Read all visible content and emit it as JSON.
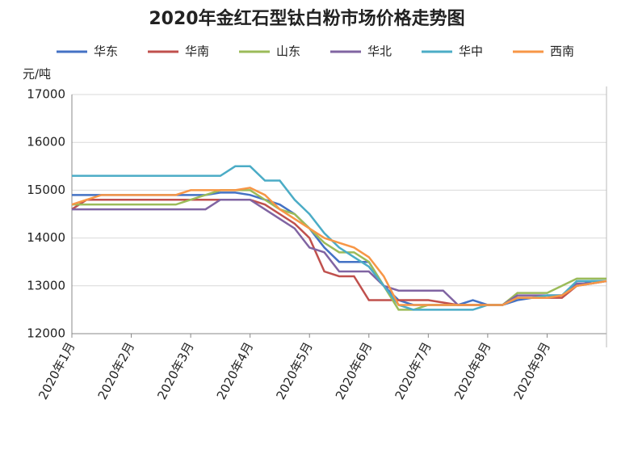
{
  "chart_data": {
    "type": "line",
    "title": "2020年金红石型钛白粉市场价格走势图",
    "y_label": "元/吨",
    "categories": [
      "2020年1月",
      null,
      null,
      null,
      "2020年2月",
      null,
      null,
      null,
      "2020年3月",
      null,
      null,
      null,
      "2020年4月",
      null,
      null,
      null,
      "2020年5月",
      null,
      null,
      null,
      "2020年6月",
      null,
      null,
      null,
      "2020年7月",
      null,
      null,
      null,
      "2020年8月",
      null,
      null,
      null,
      "2020年9月",
      null,
      null,
      null,
      null
    ],
    "series": [
      {
        "name": "华东",
        "color": "#4472c4",
        "values": [
          14900,
          14900,
          14900,
          14900,
          14900,
          14900,
          14900,
          14900,
          14900,
          14900,
          14950,
          14950,
          14900,
          14800,
          14700,
          14500,
          14200,
          13800,
          13500,
          13500,
          13500,
          13000,
          12700,
          12600,
          12600,
          12600,
          12600,
          12700,
          12600,
          12600,
          12700,
          12750,
          12800,
          12800,
          13000,
          13100,
          13100
        ]
      },
      {
        "name": "华南",
        "color": "#c0504d",
        "values": [
          14600,
          14800,
          14800,
          14800,
          14800,
          14800,
          14800,
          14800,
          14800,
          14800,
          14800,
          14800,
          14800,
          14700,
          14500,
          14300,
          14000,
          13300,
          13200,
          13200,
          12700,
          12700,
          12700,
          12700,
          12700,
          12650,
          12600,
          12600,
          12600,
          12600,
          12750,
          12750,
          12750,
          12750,
          13000,
          13050,
          13100
        ]
      },
      {
        "name": "山东",
        "color": "#9bbb59",
        "values": [
          14700,
          14700,
          14700,
          14700,
          14700,
          14700,
          14700,
          14700,
          14800,
          14900,
          15000,
          15000,
          15000,
          14800,
          14600,
          14500,
          14200,
          13900,
          13700,
          13700,
          13500,
          13000,
          12500,
          12500,
          12600,
          12600,
          12600,
          12600,
          12600,
          12600,
          12850,
          12850,
          12850,
          13000,
          13150,
          13150,
          13150
        ]
      },
      {
        "name": "华北",
        "color": "#8064a2",
        "values": [
          14600,
          14600,
          14600,
          14600,
          14600,
          14600,
          14600,
          14600,
          14600,
          14600,
          14800,
          14800,
          14800,
          14600,
          14400,
          14200,
          13800,
          13700,
          13300,
          13300,
          13300,
          13000,
          12900,
          12900,
          12900,
          12900,
          12600,
          12600,
          12600,
          12600,
          12800,
          12800,
          12800,
          12800,
          13050,
          13050,
          13100
        ]
      },
      {
        "name": "华中",
        "color": "#4bacc6",
        "values": [
          15300,
          15300,
          15300,
          15300,
          15300,
          15300,
          15300,
          15300,
          15300,
          15300,
          15300,
          15500,
          15500,
          15200,
          15200,
          14800,
          14500,
          14100,
          13800,
          13600,
          13400,
          13000,
          12600,
          12500,
          12500,
          12500,
          12500,
          12500,
          12600,
          12600,
          12750,
          12750,
          12800,
          12800,
          13100,
          13100,
          13100
        ]
      },
      {
        "name": "西南",
        "color": "#f79646",
        "values": [
          14700,
          14800,
          14900,
          14900,
          14900,
          14900,
          14900,
          14900,
          15000,
          15000,
          15000,
          15000,
          15050,
          14900,
          14600,
          14400,
          14200,
          14000,
          13900,
          13800,
          13600,
          13200,
          12600,
          12600,
          12600,
          12600,
          12600,
          12600,
          12600,
          12600,
          12750,
          12750,
          12750,
          12800,
          13000,
          13050,
          13100
        ]
      }
    ],
    "ylim": [
      12000,
      17000
    ],
    "yticks": [
      12000,
      13000,
      14000,
      15000,
      16000,
      17000
    ],
    "grid": true
  }
}
